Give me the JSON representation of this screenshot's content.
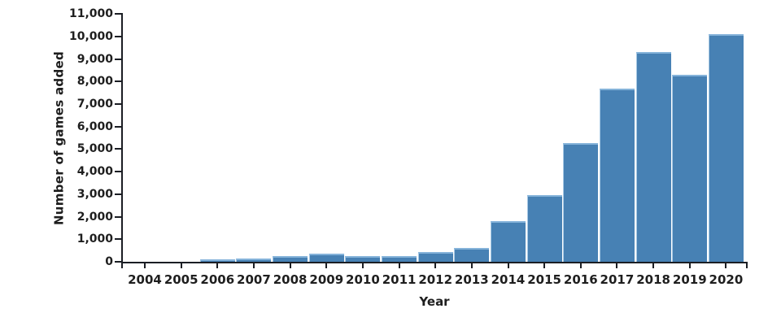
{
  "chart_data": {
    "type": "bar",
    "title": "",
    "xlabel": "Year",
    "ylabel": "Number of games added",
    "categories": [
      "2004",
      "2005",
      "2006",
      "2007",
      "2008",
      "2009",
      "2010",
      "2011",
      "2012",
      "2013",
      "2014",
      "2015",
      "2016",
      "2017",
      "2018",
      "2019",
      "2020"
    ],
    "values": [
      0,
      0,
      100,
      150,
      240,
      370,
      250,
      270,
      420,
      620,
      1800,
      2950,
      5250,
      7700,
      9300,
      8300,
      10100
    ],
    "ylim": [
      0,
      11000
    ],
    "ytick_step": 1000,
    "ytick_labels": [
      "0",
      "1,000",
      "2,000",
      "3,000",
      "4,000",
      "5,000",
      "6,000",
      "7,000",
      "8,000",
      "9,000",
      "10,000",
      "11,000"
    ],
    "grid": "off",
    "legend": "none",
    "colors": {
      "bar_fill": "#4781b4",
      "bar_top_edge": "#85b3da",
      "bar_left_edge": "#a6c8e4",
      "axis": "#1b1e24",
      "text": "#1e1e1e",
      "background": "#ffffff"
    }
  }
}
